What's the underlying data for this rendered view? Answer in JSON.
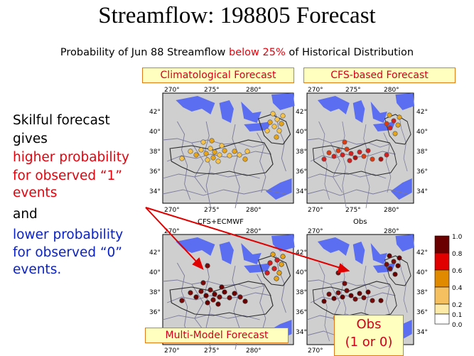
{
  "title": "Streamflow: 198805 Forecast",
  "subtitle": {
    "prefix": "Probability of Jun 88 Streamflow ",
    "highlight": "below 25%",
    "suffix": " of Historical Distribution"
  },
  "labels": {
    "climatological": "Climatological Forecast",
    "cfs": "CFS-based Forecast",
    "multimodel": "Multi-Model Forecast",
    "obs_line1": "Obs",
    "obs_line2": "(1 or 0)"
  },
  "panel_titles": {
    "cfs_ecmwf": "CFS+ECMWF",
    "obs": "Obs"
  },
  "side_text": {
    "line1": "Skilful forecast",
    "line2": "gives",
    "red1": "higher probability",
    "red2": "for observed “1”",
    "red3": "events",
    "and": "and",
    "blue1": "lower probability",
    "blue2": "for observed “0”",
    "blue3": "events."
  },
  "axes": {
    "lon_ticks": [
      "270°",
      "275°",
      "280°"
    ],
    "lat_ticks": [
      "42°",
      "40°",
      "38°",
      "36°",
      "34°"
    ]
  },
  "colorbar": {
    "labels": [
      "1.0",
      "0.8",
      "0.6",
      "0.4",
      "0.2",
      "0.1",
      "0.0"
    ],
    "colors": [
      "#6b0000",
      "#e00000",
      "#e08a00",
      "#f5c060",
      "#fde9a8",
      "#ffffff"
    ]
  },
  "colors": {
    "title_red": "#e8000b",
    "blue_text": "#0a21c8",
    "label_bg": "#ffffc0",
    "label_border": "#e07a1a"
  }
}
